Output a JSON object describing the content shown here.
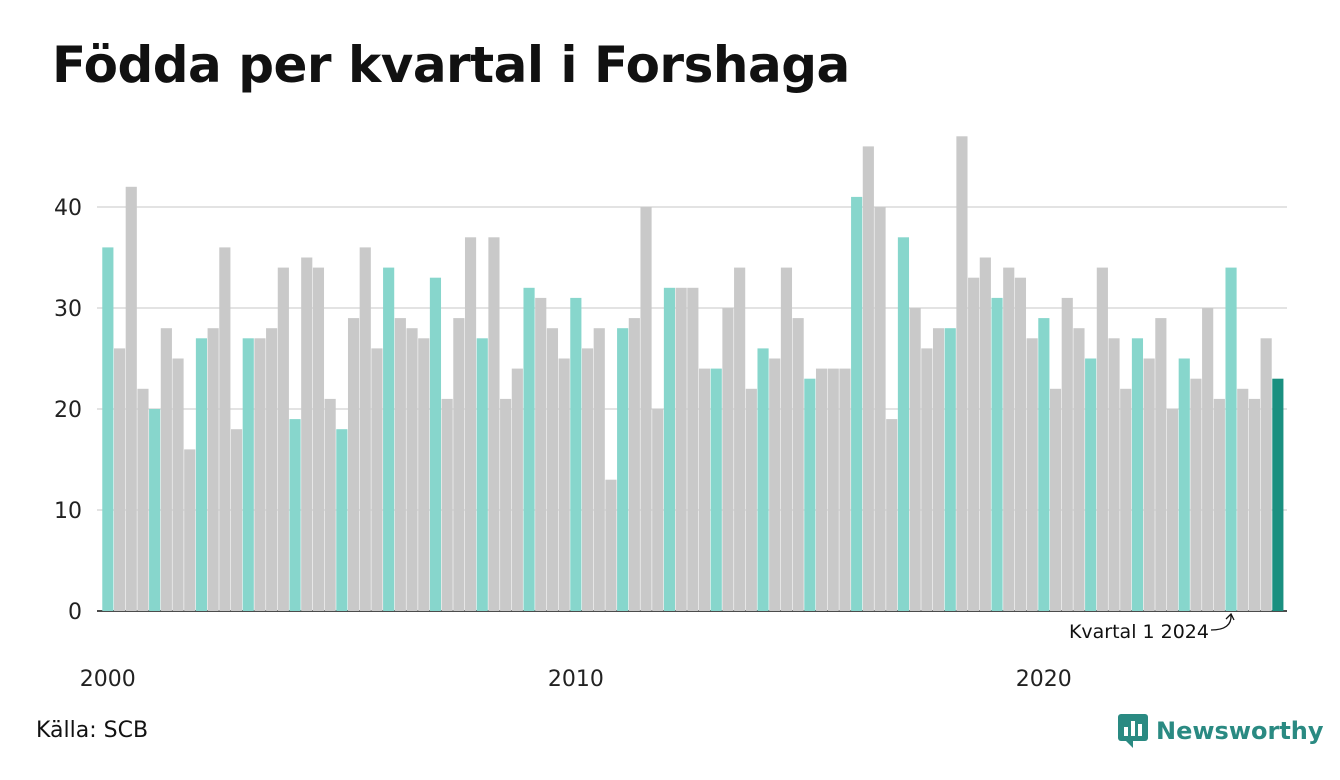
{
  "title": "Födda per kvartal i Forshaga",
  "source": "Källa: SCB",
  "brand": "Newsworthy",
  "colors": {
    "highlight_q1": "#87d6cc",
    "other": "#c9c9c9",
    "latest": "#1a9080",
    "brand": "#2a8a82"
  },
  "chart_data": {
    "type": "bar",
    "title": "Födda per kvartal i Forshaga",
    "xlabel": "",
    "ylabel": "",
    "ylim": [
      0,
      47
    ],
    "yticks": [
      0,
      10,
      20,
      30,
      40
    ],
    "xtick_labels": [
      "2000",
      "2010",
      "2020"
    ],
    "grid": true,
    "start_year": 2000,
    "quarters_per_year": 4,
    "values": [
      36,
      26,
      42,
      22,
      20,
      28,
      25,
      16,
      27,
      28,
      36,
      18,
      27,
      27,
      28,
      34,
      19,
      35,
      34,
      21,
      18,
      29,
      36,
      26,
      34,
      29,
      28,
      27,
      33,
      21,
      29,
      37,
      27,
      37,
      21,
      24,
      32,
      31,
      28,
      25,
      31,
      26,
      28,
      13,
      28,
      29,
      40,
      20,
      32,
      32,
      32,
      24,
      24,
      30,
      34,
      22,
      26,
      25,
      34,
      29,
      23,
      24,
      24,
      24,
      41,
      46,
      40,
      19,
      37,
      30,
      26,
      28,
      28,
      47,
      33,
      35,
      31,
      34,
      33,
      27,
      29,
      22,
      31,
      28,
      25,
      34,
      27,
      22,
      27,
      25,
      29,
      20,
      25,
      23,
      30,
      21,
      34,
      22,
      21,
      27,
      23
    ],
    "annotation": "Kvartal 1 2024"
  }
}
